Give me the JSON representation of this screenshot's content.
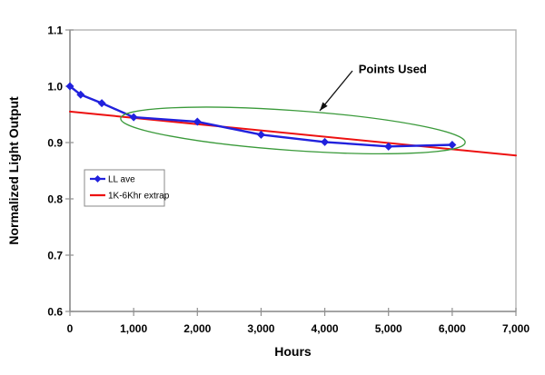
{
  "chart_data": {
    "type": "line",
    "title": "",
    "xlabel": "Hours",
    "ylabel": "Normalized Light Output",
    "xlim": [
      0,
      7000
    ],
    "ylim": [
      0.6,
      1.1
    ],
    "grid": false,
    "legend_position": "inside upper-left of plot",
    "x_ticks": [
      0,
      1000,
      2000,
      3000,
      4000,
      5000,
      6000,
      7000
    ],
    "x_tick_labels": [
      "0",
      "1,000",
      "2,000",
      "3,000",
      "4,000",
      "5,000",
      "6,000",
      "7,000"
    ],
    "y_ticks": [
      0.6,
      0.7,
      0.8,
      0.9,
      1.0,
      1.1
    ],
    "y_tick_labels": [
      "0.6",
      "0.7",
      "0.8",
      "0.9",
      "1.0",
      "1.1"
    ],
    "series": [
      {
        "name": "LL ave",
        "color": "#2121dd",
        "marker": "diamond",
        "line_width": 2.4,
        "x": [
          0,
          168,
          500,
          1000,
          2000,
          3000,
          4000,
          5000,
          6000
        ],
        "y": [
          1.0,
          0.985,
          0.97,
          0.945,
          0.937,
          0.914,
          0.901,
          0.893,
          0.896
        ]
      },
      {
        "name": "1K-6Khr extrap",
        "color": "#ed1111",
        "marker": "none",
        "line_width": 2,
        "x": [
          0,
          7000
        ],
        "y": [
          0.955,
          0.877
        ]
      }
    ],
    "annotation": {
      "label": "Points Used",
      "label_anchor": {
        "x": 4530,
        "y": 1.023
      },
      "arrow": {
        "from": {
          "x": 4434,
          "y": 1.0274
        },
        "to": {
          "x": 3921,
          "y": 0.9565
        },
        "color": "#111111"
      },
      "ellipse": {
        "cx": 3500,
        "cy": 0.9215,
        "rx": 2710,
        "ry": 0.0355,
        "rotate_deg": 4,
        "color": "#3a9a3a"
      }
    },
    "colors": {
      "axis": "#8f8f8f",
      "border": "#b3b3b3",
      "background": "#ffffff",
      "legend_border": "#8a8a8a"
    }
  }
}
